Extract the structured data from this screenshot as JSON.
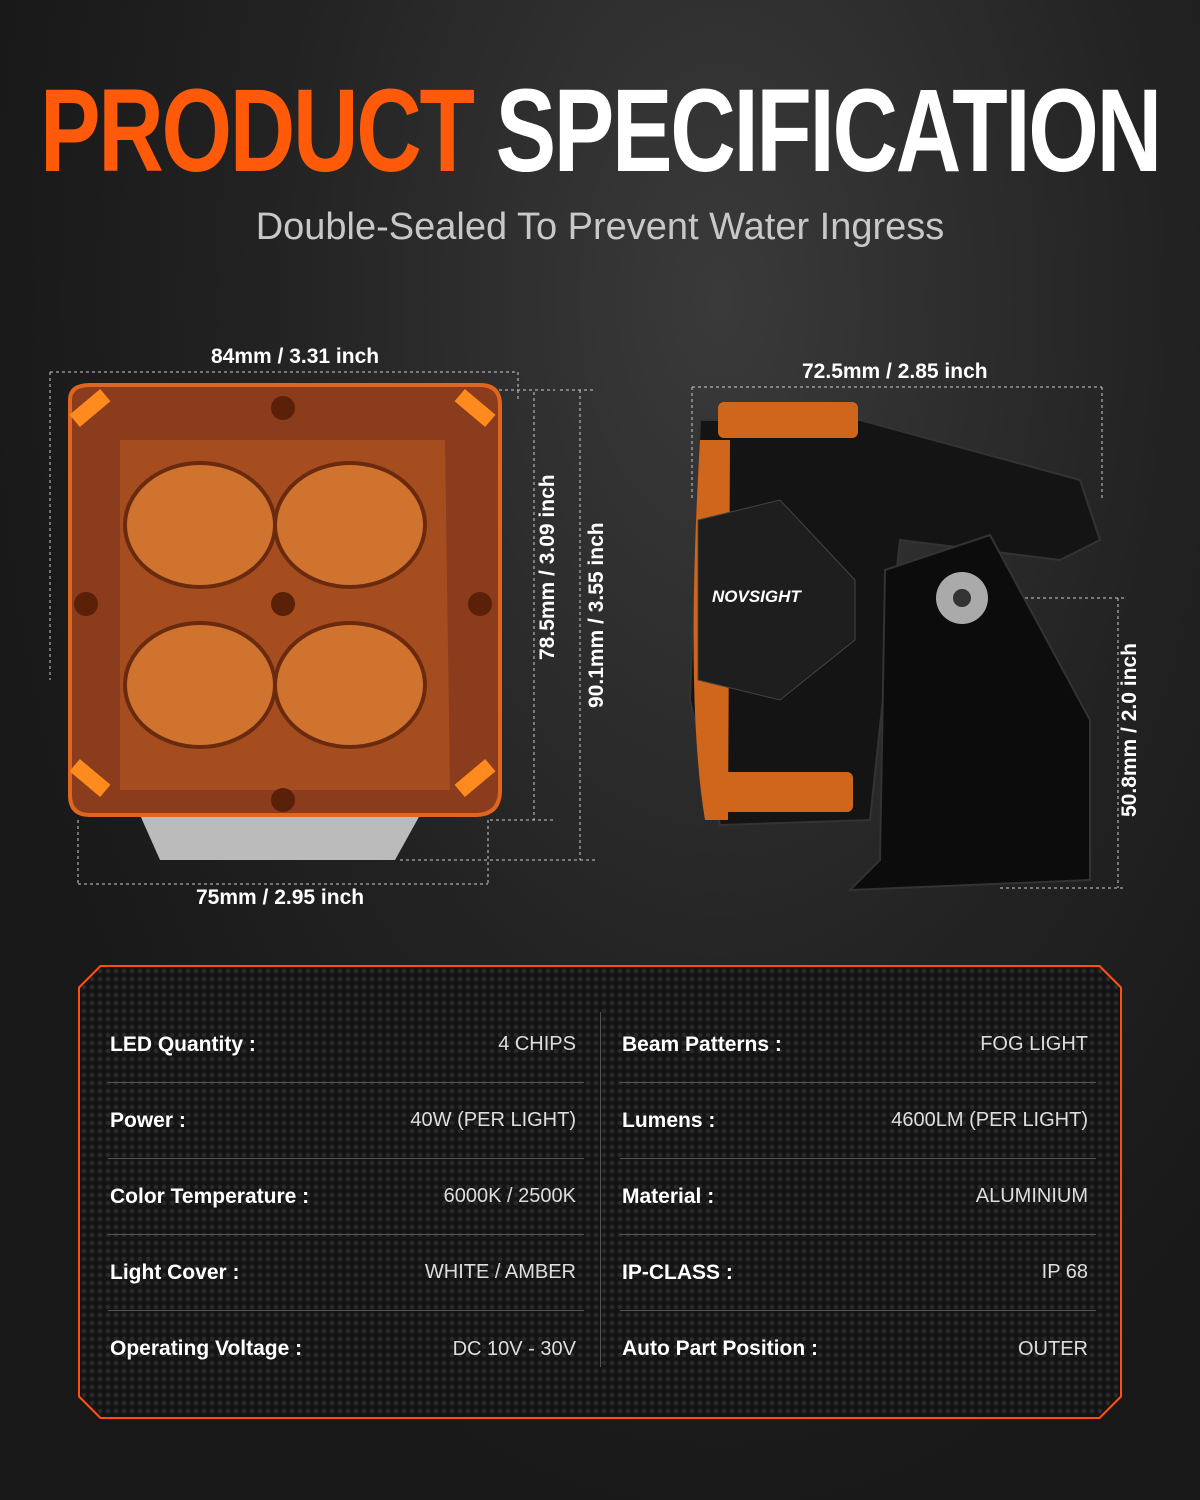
{
  "header": {
    "title_part1": "PRODUCT",
    "title_part2": "SPECIFICATION",
    "subtitle": "Double-Sealed To Prevent Water Ingress"
  },
  "dimensions": {
    "front_width_top": "84mm / 3.31 inch",
    "front_width_bottom": "75mm / 2.95 inch",
    "front_height_inner": "78.5mm / 3.09 inch",
    "front_height_outer": "90.1mm / 3.55 inch",
    "side_depth": "72.5mm / 2.85 inch",
    "side_mount_height": "50.8mm / 2.0 inch"
  },
  "brand": {
    "logo_text": "NOVSIGHT"
  },
  "specs": {
    "left": [
      {
        "label": "LED Quantity :",
        "value": "4 CHIPS"
      },
      {
        "label": "Power :",
        "value": "40W (PER LIGHT)"
      },
      {
        "label": "Color Temperature :",
        "value": "6000K / 2500K"
      },
      {
        "label": "Light Cover :",
        "value": "WHITE / AMBER"
      },
      {
        "label": "Operating Voltage :",
        "value": "DC 10V - 30V"
      }
    ],
    "right": [
      {
        "label": "Beam Patterns :",
        "value": "FOG LIGHT"
      },
      {
        "label": "Lumens :",
        "value": "4600LM (PER LIGHT)"
      },
      {
        "label": "Material :",
        "value": "ALUMINIUM"
      },
      {
        "label": "IP-CLASS :",
        "value": "IP 68"
      },
      {
        "label": "Auto Part Position :",
        "value": "OUTER"
      }
    ]
  },
  "colors": {
    "accent": "#ff5a0a",
    "amber": "#c8561a",
    "background": "#1c1c1c"
  }
}
